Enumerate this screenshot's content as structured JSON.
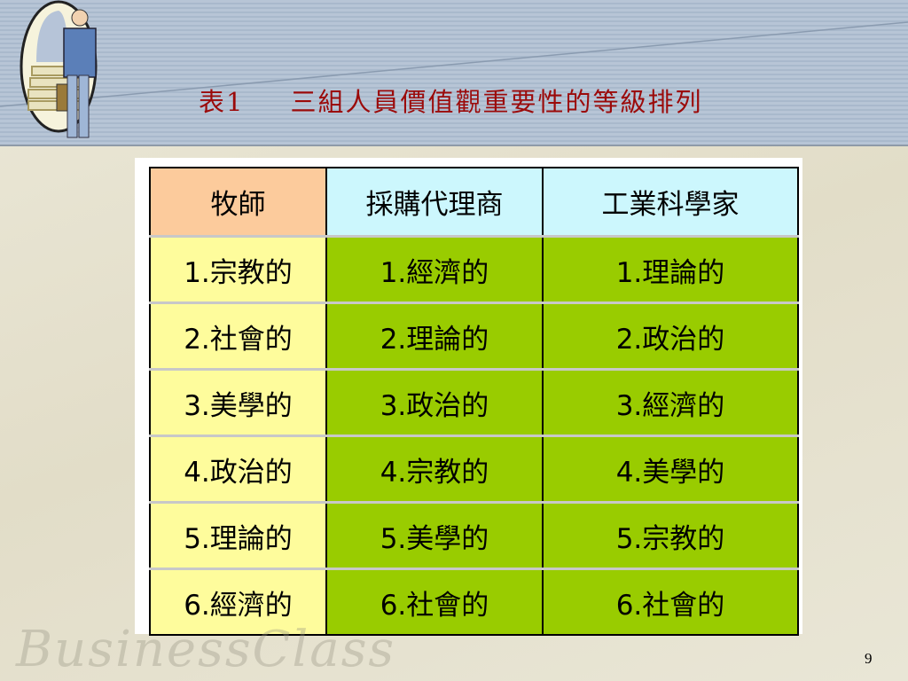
{
  "slide": {
    "title_label": "表1",
    "title_text": "三組人員價值觀重要性的等級排列",
    "page_number": "9",
    "watermark": "BusinessClass"
  },
  "table": {
    "headers": [
      "牧師",
      "採購代理商",
      "工業科學家"
    ],
    "rows": [
      [
        "1.宗教的",
        "1.經濟的",
        "1.理論的"
      ],
      [
        "2.社會的",
        "2.理論的",
        "2.政治的"
      ],
      [
        "3.美學的",
        "3.政治的",
        "3.經濟的"
      ],
      [
        "4.政治的",
        "4.宗教的",
        "4.美學的"
      ],
      [
        "5.理論的",
        "5.美學的",
        "5.宗教的"
      ],
      [
        "6.經濟的",
        "6.社會的",
        "6.社會的"
      ]
    ]
  },
  "colors": {
    "title": "#9b0a0a",
    "header_col1": "#fccb9c",
    "header_col23": "#ccf7fd",
    "body_col1": "#fefc9c",
    "body_col23": "#99cc00"
  }
}
